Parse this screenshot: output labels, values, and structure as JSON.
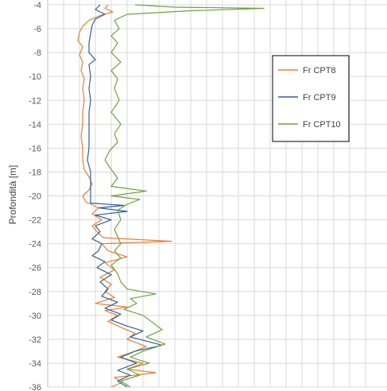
{
  "chart_data": {
    "type": "line",
    "title": "",
    "xlabel": "",
    "ylabel": "Profondità [m]",
    "ylim": [
      -36,
      -4
    ],
    "y_ticks": [
      "-4",
      "-6",
      "-8",
      "-10",
      "-12",
      "-14",
      "-16",
      "-18",
      "-20",
      "-22",
      "-24",
      "-26",
      "-28",
      "-30",
      "-32",
      "-34",
      "-36"
    ],
    "grid": true,
    "legend_position": "right",
    "series": [
      {
        "name": "Fr CPT8",
        "color": "#ED7D31",
        "points": [
          [
            0.38,
            -4.0
          ],
          [
            0.36,
            -4.3
          ],
          [
            0.41,
            -4.6
          ],
          [
            0.33,
            -4.9
          ],
          [
            0.26,
            -5.3
          ],
          [
            0.22,
            -5.8
          ],
          [
            0.2,
            -6.3
          ],
          [
            0.19,
            -7.0
          ],
          [
            0.22,
            -7.5
          ],
          [
            0.2,
            -8.2
          ],
          [
            0.22,
            -8.8
          ],
          [
            0.21,
            -9.5
          ],
          [
            0.23,
            -10.2
          ],
          [
            0.22,
            -11.0
          ],
          [
            0.23,
            -12.0
          ],
          [
            0.22,
            -13.0
          ],
          [
            0.22,
            -14.0
          ],
          [
            0.21,
            -15.0
          ],
          [
            0.22,
            -16.0
          ],
          [
            0.22,
            -17.0
          ],
          [
            0.23,
            -17.8
          ],
          [
            0.26,
            -18.4
          ],
          [
            0.28,
            -19.0
          ],
          [
            0.26,
            -19.5
          ],
          [
            0.22,
            -20.0
          ],
          [
            0.24,
            -20.5
          ],
          [
            0.32,
            -21.0
          ],
          [
            0.28,
            -21.5
          ],
          [
            0.34,
            -22.0
          ],
          [
            0.28,
            -22.5
          ],
          [
            0.31,
            -23.0
          ],
          [
            0.35,
            -23.5
          ],
          [
            0.78,
            -23.8
          ],
          [
            0.34,
            -24.0
          ],
          [
            0.38,
            -24.6
          ],
          [
            0.5,
            -25.1
          ],
          [
            0.36,
            -25.6
          ],
          [
            0.42,
            -26.2
          ],
          [
            0.33,
            -26.8
          ],
          [
            0.4,
            -27.4
          ],
          [
            0.36,
            -28.0
          ],
          [
            0.42,
            -28.5
          ],
          [
            0.3,
            -29.0
          ],
          [
            0.5,
            -29.3
          ],
          [
            0.36,
            -29.6
          ],
          [
            0.44,
            -30.0
          ],
          [
            0.38,
            -30.5
          ],
          [
            0.46,
            -31.0
          ],
          [
            0.55,
            -31.5
          ],
          [
            0.5,
            -32.0
          ],
          [
            0.62,
            -32.6
          ],
          [
            0.55,
            -33.0
          ],
          [
            0.44,
            -33.5
          ],
          [
            0.6,
            -34.0
          ],
          [
            0.5,
            -34.5
          ],
          [
            0.68,
            -34.8
          ],
          [
            0.42,
            -35.2
          ],
          [
            0.47,
            -35.6
          ],
          [
            0.4,
            -36.0
          ]
        ]
      },
      {
        "name": "Fr CPT9",
        "color": "#2E5F9E",
        "points": [
          [
            0.33,
            -4.0
          ],
          [
            0.3,
            -4.4
          ],
          [
            0.36,
            -4.8
          ],
          [
            0.3,
            -5.2
          ],
          [
            0.28,
            -5.7
          ],
          [
            0.27,
            -6.4
          ],
          [
            0.26,
            -7.2
          ],
          [
            0.26,
            -8.0
          ],
          [
            0.3,
            -8.6
          ],
          [
            0.26,
            -9.0
          ],
          [
            0.27,
            -10.0
          ],
          [
            0.26,
            -11.0
          ],
          [
            0.27,
            -12.0
          ],
          [
            0.26,
            -13.0
          ],
          [
            0.26,
            -14.0
          ],
          [
            0.26,
            -15.0
          ],
          [
            0.26,
            -16.0
          ],
          [
            0.25,
            -17.0
          ],
          [
            0.27,
            -18.0
          ],
          [
            0.27,
            -19.0
          ],
          [
            0.27,
            -20.0
          ],
          [
            0.27,
            -20.6
          ],
          [
            0.48,
            -20.8
          ],
          [
            0.32,
            -21.0
          ],
          [
            0.5,
            -21.3
          ],
          [
            0.3,
            -21.6
          ],
          [
            0.4,
            -22.0
          ],
          [
            0.3,
            -22.5
          ],
          [
            0.33,
            -23.0
          ],
          [
            0.28,
            -23.6
          ],
          [
            0.34,
            -24.0
          ],
          [
            0.32,
            -24.6
          ],
          [
            0.28,
            -25.0
          ],
          [
            0.36,
            -25.5
          ],
          [
            0.31,
            -26.0
          ],
          [
            0.4,
            -26.6
          ],
          [
            0.33,
            -27.2
          ],
          [
            0.38,
            -27.8
          ],
          [
            0.34,
            -28.4
          ],
          [
            0.44,
            -28.9
          ],
          [
            0.36,
            -29.4
          ],
          [
            0.46,
            -29.9
          ],
          [
            0.4,
            -30.4
          ],
          [
            0.5,
            -30.9
          ],
          [
            0.6,
            -31.3
          ],
          [
            0.52,
            -31.8
          ],
          [
            0.72,
            -32.5
          ],
          [
            0.55,
            -33.0
          ],
          [
            0.46,
            -33.5
          ],
          [
            0.56,
            -34.0
          ],
          [
            0.44,
            -34.6
          ],
          [
            0.52,
            -35.0
          ],
          [
            0.44,
            -35.5
          ],
          [
            0.5,
            -36.0
          ]
        ]
      },
      {
        "name": "Fr CPT10",
        "color": "#70A23C",
        "points": [
          [
            0.55,
            -4.0
          ],
          [
            0.8,
            -4.2
          ],
          [
            1.36,
            -4.3
          ],
          [
            0.9,
            -4.5
          ],
          [
            0.5,
            -4.8
          ],
          [
            0.42,
            -5.3
          ],
          [
            0.45,
            -6.0
          ],
          [
            0.4,
            -6.6
          ],
          [
            0.44,
            -7.2
          ],
          [
            0.4,
            -8.0
          ],
          [
            0.46,
            -8.8
          ],
          [
            0.4,
            -9.5
          ],
          [
            0.44,
            -10.2
          ],
          [
            0.42,
            -11.0
          ],
          [
            0.45,
            -12.0
          ],
          [
            0.4,
            -13.0
          ],
          [
            0.46,
            -14.0
          ],
          [
            0.42,
            -14.8
          ],
          [
            0.44,
            -15.5
          ],
          [
            0.39,
            -16.2
          ],
          [
            0.36,
            -17.0
          ],
          [
            0.4,
            -17.8
          ],
          [
            0.44,
            -18.5
          ],
          [
            0.4,
            -19.2
          ],
          [
            0.62,
            -19.6
          ],
          [
            0.4,
            -20.0
          ],
          [
            0.58,
            -20.3
          ],
          [
            0.5,
            -20.7
          ],
          [
            0.44,
            -21.2
          ],
          [
            0.46,
            -22.0
          ],
          [
            0.42,
            -22.8
          ],
          [
            0.44,
            -23.4
          ],
          [
            0.46,
            -24.0
          ],
          [
            0.42,
            -24.6
          ],
          [
            0.46,
            -25.2
          ],
          [
            0.4,
            -25.8
          ],
          [
            0.44,
            -26.5
          ],
          [
            0.46,
            -27.2
          ],
          [
            0.5,
            -27.8
          ],
          [
            0.68,
            -28.2
          ],
          [
            0.52,
            -28.6
          ],
          [
            0.56,
            -29.0
          ],
          [
            0.48,
            -29.5
          ],
          [
            0.6,
            -30.0
          ],
          [
            0.66,
            -30.6
          ],
          [
            0.72,
            -31.2
          ],
          [
            0.62,
            -31.8
          ],
          [
            0.74,
            -32.4
          ],
          [
            0.6,
            -33.0
          ],
          [
            0.52,
            -33.5
          ],
          [
            0.64,
            -34.0
          ],
          [
            0.5,
            -34.5
          ],
          [
            0.58,
            -35.0
          ],
          [
            0.46,
            -35.5
          ],
          [
            0.52,
            -36.0
          ]
        ]
      }
    ]
  }
}
